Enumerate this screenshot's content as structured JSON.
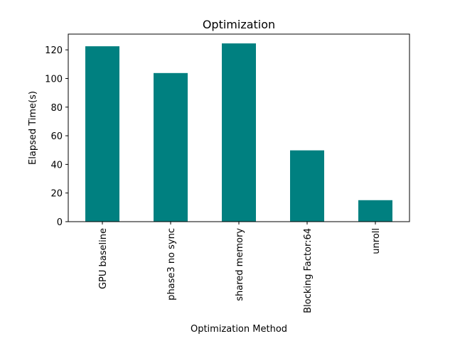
{
  "chart_data": {
    "type": "bar",
    "title": "Optimization",
    "xlabel": "Optimization Method",
    "ylabel": "Elapsed Time(s)",
    "categories": [
      "GPU baseline",
      "phase3 no sync",
      "shared memory",
      "Blocking Factor:64",
      "unroll"
    ],
    "values": [
      122.5,
      103.8,
      124.5,
      49.8,
      15.0
    ],
    "ylim": [
      0,
      131
    ],
    "yticks": [
      0,
      20,
      40,
      60,
      80,
      100,
      120
    ],
    "bar_color": "#008080",
    "grid": false,
    "legend": "none"
  }
}
